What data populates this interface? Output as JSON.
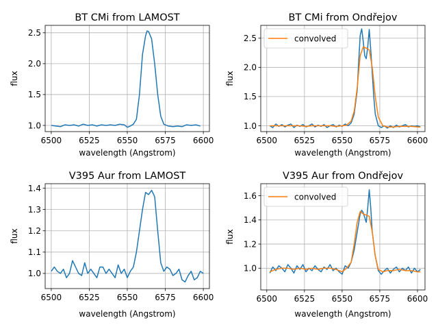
{
  "chart_data": [
    {
      "type": "line",
      "title": "BT CMi from LAMOST",
      "xlabel": "wavelength (Angstrom)",
      "ylabel": "flux",
      "xlim": [
        6496,
        6604
      ],
      "ylim": [
        0.9,
        2.62
      ],
      "xticks": [
        6500,
        6525,
        6550,
        6575,
        6600
      ],
      "yticks": [
        1.0,
        1.5,
        2.0,
        2.5
      ],
      "ytick_labels": [
        "1.0",
        "1.5",
        "2.0",
        "2.5"
      ],
      "grid": true,
      "legend": null,
      "colors": {
        "spectrum": "#1f77b4"
      },
      "series": [
        {
          "name": "",
          "x": [
            6500,
            6503,
            6506,
            6509,
            6512,
            6515,
            6518,
            6521,
            6524,
            6527,
            6530,
            6533,
            6536,
            6539,
            6542,
            6545,
            6548,
            6550,
            6552,
            6554,
            6556,
            6558,
            6560,
            6562,
            6563,
            6564,
            6566,
            6568,
            6570,
            6572,
            6574,
            6577,
            6580,
            6583,
            6586,
            6589,
            6592,
            6595,
            6598
          ],
          "y": [
            1.0,
            0.99,
            0.98,
            1.01,
            1.0,
            1.01,
            0.99,
            1.02,
            1.0,
            1.01,
            0.99,
            1.01,
            1.0,
            1.01,
            1.0,
            1.02,
            1.01,
            0.97,
            0.99,
            1.02,
            1.1,
            1.5,
            2.15,
            2.45,
            2.53,
            2.52,
            2.4,
            2.0,
            1.5,
            1.15,
            1.02,
            0.99,
            0.98,
            0.99,
            0.98,
            1.01,
            1.0,
            1.01,
            0.99
          ]
        }
      ]
    },
    {
      "type": "line",
      "title": "BT CMi from Ondřejov",
      "xlabel": "wavelength (Angstrom)",
      "ylabel": "flux",
      "xlim": [
        6496,
        6605
      ],
      "ylim": [
        0.9,
        2.72
      ],
      "xticks": [
        6500,
        6525,
        6550,
        6575,
        6600
      ],
      "yticks": [
        1.0,
        1.5,
        2.0,
        2.5
      ],
      "ytick_labels": [
        "1.0",
        "1.5",
        "2.0",
        "2.5"
      ],
      "grid": true,
      "legend": "upper-left",
      "colors": {
        "observed": "#1f77b4",
        "convolved": "#ff7f0e"
      },
      "series": [
        {
          "name": "",
          "x": [
            6502,
            6504,
            6506,
            6508,
            6510,
            6512,
            6514,
            6516,
            6518,
            6520,
            6522,
            6524,
            6526,
            6528,
            6530,
            6532,
            6534,
            6536,
            6538,
            6540,
            6542,
            6544,
            6546,
            6548,
            6550,
            6552,
            6554,
            6556,
            6558,
            6560,
            6561,
            6562,
            6563,
            6564,
            6565,
            6566,
            6567,
            6568,
            6569,
            6570,
            6571,
            6572,
            6574,
            6576,
            6578,
            6580,
            6582,
            6584,
            6586,
            6588,
            6590,
            6592,
            6594,
            6596,
            6598,
            6600,
            6602
          ],
          "y": [
            1.0,
            0.97,
            1.03,
            0.99,
            1.02,
            0.98,
            1.01,
            1.03,
            0.97,
            1.01,
            0.99,
            1.02,
            0.98,
            1.0,
            1.03,
            0.98,
            1.01,
            0.99,
            1.02,
            0.97,
            1.0,
            1.02,
            0.98,
            1.01,
            0.99,
            1.03,
            1.0,
            1.05,
            1.2,
            1.6,
            2.1,
            2.55,
            2.66,
            2.45,
            2.2,
            2.15,
            2.35,
            2.65,
            2.3,
            1.9,
            1.5,
            1.2,
            1.0,
            0.97,
            1.0,
            0.96,
            1.0,
            0.97,
            1.01,
            0.98,
            1.0,
            1.02,
            0.98,
            1.0,
            0.99,
            1.0,
            0.98
          ]
        },
        {
          "name": "convolved",
          "x": [
            6502,
            6506,
            6510,
            6514,
            6518,
            6522,
            6526,
            6530,
            6534,
            6538,
            6542,
            6546,
            6550,
            6553,
            6556,
            6558,
            6560,
            6562,
            6564,
            6566,
            6568,
            6570,
            6572,
            6574,
            6577,
            6580,
            6584,
            6588,
            6592,
            6596,
            6600,
            6602
          ],
          "y": [
            1.0,
            1.0,
            1.0,
            1.0,
            1.0,
            1.0,
            0.99,
            1.0,
            1.0,
            1.0,
            1.0,
            0.99,
            1.0,
            1.01,
            1.08,
            1.25,
            1.65,
            2.2,
            2.35,
            2.33,
            2.3,
            2.0,
            1.5,
            1.15,
            1.0,
            0.98,
            0.98,
            0.99,
            0.99,
            0.99,
            0.98,
            0.98
          ]
        }
      ]
    },
    {
      "type": "line",
      "title": "V395 Aur from LAMOST",
      "xlabel": "wavelength (Angstrom)",
      "ylabel": "flux",
      "xlim": [
        6496,
        6604
      ],
      "ylim": [
        0.929,
        1.421
      ],
      "xticks": [
        6500,
        6525,
        6550,
        6575,
        6600
      ],
      "yticks": [
        1.0,
        1.1,
        1.2,
        1.3,
        1.4
      ],
      "ytick_labels": [
        "1.0",
        "1.1",
        "1.2",
        "1.3",
        "1.4"
      ],
      "grid": true,
      "legend": null,
      "colors": {
        "spectrum": "#1f77b4"
      },
      "series": [
        {
          "name": "",
          "x": [
            6500,
            6502,
            6504,
            6506,
            6508,
            6510,
            6512,
            6514,
            6516,
            6518,
            6520,
            6522,
            6524,
            6526,
            6528,
            6530,
            6532,
            6534,
            6536,
            6538,
            6540,
            6542,
            6544,
            6546,
            6548,
            6550,
            6552,
            6554,
            6556,
            6558,
            6560,
            6562,
            6564,
            6566,
            6568,
            6570,
            6572,
            6574,
            6576,
            6578,
            6580,
            6582,
            6584,
            6586,
            6588,
            6590,
            6592,
            6594,
            6596,
            6598,
            6600
          ],
          "y": [
            1.01,
            1.03,
            1.01,
            1.0,
            1.02,
            0.98,
            1.0,
            1.06,
            1.03,
            1.0,
            0.99,
            1.05,
            1.0,
            1.02,
            1.0,
            0.98,
            1.03,
            1.03,
            1.0,
            1.02,
            1.0,
            0.98,
            1.04,
            1.0,
            1.02,
            0.98,
            1.01,
            1.03,
            1.1,
            1.2,
            1.3,
            1.38,
            1.37,
            1.39,
            1.36,
            1.2,
            1.05,
            1.01,
            1.03,
            1.02,
            0.99,
            1.0,
            1.02,
            0.97,
            0.96,
            0.99,
            1.01,
            0.97,
            0.98,
            1.01,
            1.0
          ]
        }
      ]
    },
    {
      "type": "line",
      "title": "V395 Aur from Ondřejov",
      "xlabel": "wavelength (Angstrom)",
      "ylabel": "flux",
      "xlim": [
        6496,
        6605
      ],
      "ylim": [
        0.82,
        1.7
      ],
      "xticks": [
        6500,
        6525,
        6550,
        6575,
        6600
      ],
      "yticks": [
        1.0,
        1.2,
        1.4,
        1.6
      ],
      "ytick_labels": [
        "1.0",
        "1.2",
        "1.4",
        "1.6"
      ],
      "grid": true,
      "legend": "upper-left",
      "colors": {
        "observed": "#1f77b4",
        "convolved": "#ff7f0e"
      },
      "series": [
        {
          "name": "",
          "x": [
            6502,
            6504,
            6506,
            6508,
            6510,
            6512,
            6514,
            6516,
            6518,
            6520,
            6522,
            6524,
            6526,
            6528,
            6530,
            6532,
            6534,
            6536,
            6538,
            6540,
            6542,
            6544,
            6546,
            6548,
            6550,
            6552,
            6554,
            6556,
            6558,
            6560,
            6562,
            6563,
            6564,
            6565,
            6566,
            6567,
            6568,
            6569,
            6570,
            6572,
            6574,
            6576,
            6578,
            6580,
            6582,
            6584,
            6586,
            6588,
            6590,
            6592,
            6594,
            6596,
            6598,
            6600,
            6602
          ],
          "y": [
            0.96,
            1.01,
            0.98,
            1.02,
            1.0,
            0.97,
            1.03,
            1.0,
            0.96,
            1.02,
            0.99,
            1.03,
            0.97,
            1.0,
            0.98,
            1.02,
            0.99,
            0.97,
            1.01,
            0.99,
            1.03,
            0.98,
            1.0,
            0.97,
            0.95,
            1.02,
            1.0,
            1.05,
            1.15,
            1.3,
            1.45,
            1.48,
            1.46,
            1.42,
            1.38,
            1.5,
            1.65,
            1.5,
            1.3,
            1.1,
            0.98,
            0.95,
            0.98,
            1.0,
            0.96,
            0.99,
            1.01,
            0.97,
            1.0,
            0.98,
            1.01,
            0.96,
            1.0,
            0.97,
            0.99
          ]
        },
        {
          "name": "convolved",
          "x": [
            6502,
            6506,
            6510,
            6514,
            6518,
            6522,
            6526,
            6530,
            6534,
            6538,
            6542,
            6546,
            6550,
            6553,
            6556,
            6558,
            6560,
            6562,
            6564,
            6566,
            6568,
            6570,
            6572,
            6574,
            6577,
            6580,
            6584,
            6588,
            6592,
            6596,
            6600,
            6602
          ],
          "y": [
            0.97,
            0.99,
            1.0,
            1.0,
            0.99,
            1.0,
            0.99,
            1.0,
            0.99,
            1.0,
            1.0,
            0.99,
            0.97,
            1.0,
            1.05,
            1.2,
            1.38,
            1.47,
            1.45,
            1.44,
            1.43,
            1.3,
            1.1,
            0.99,
            0.97,
            0.98,
            0.98,
            0.99,
            0.98,
            0.98,
            0.97,
            0.97
          ]
        }
      ]
    }
  ]
}
